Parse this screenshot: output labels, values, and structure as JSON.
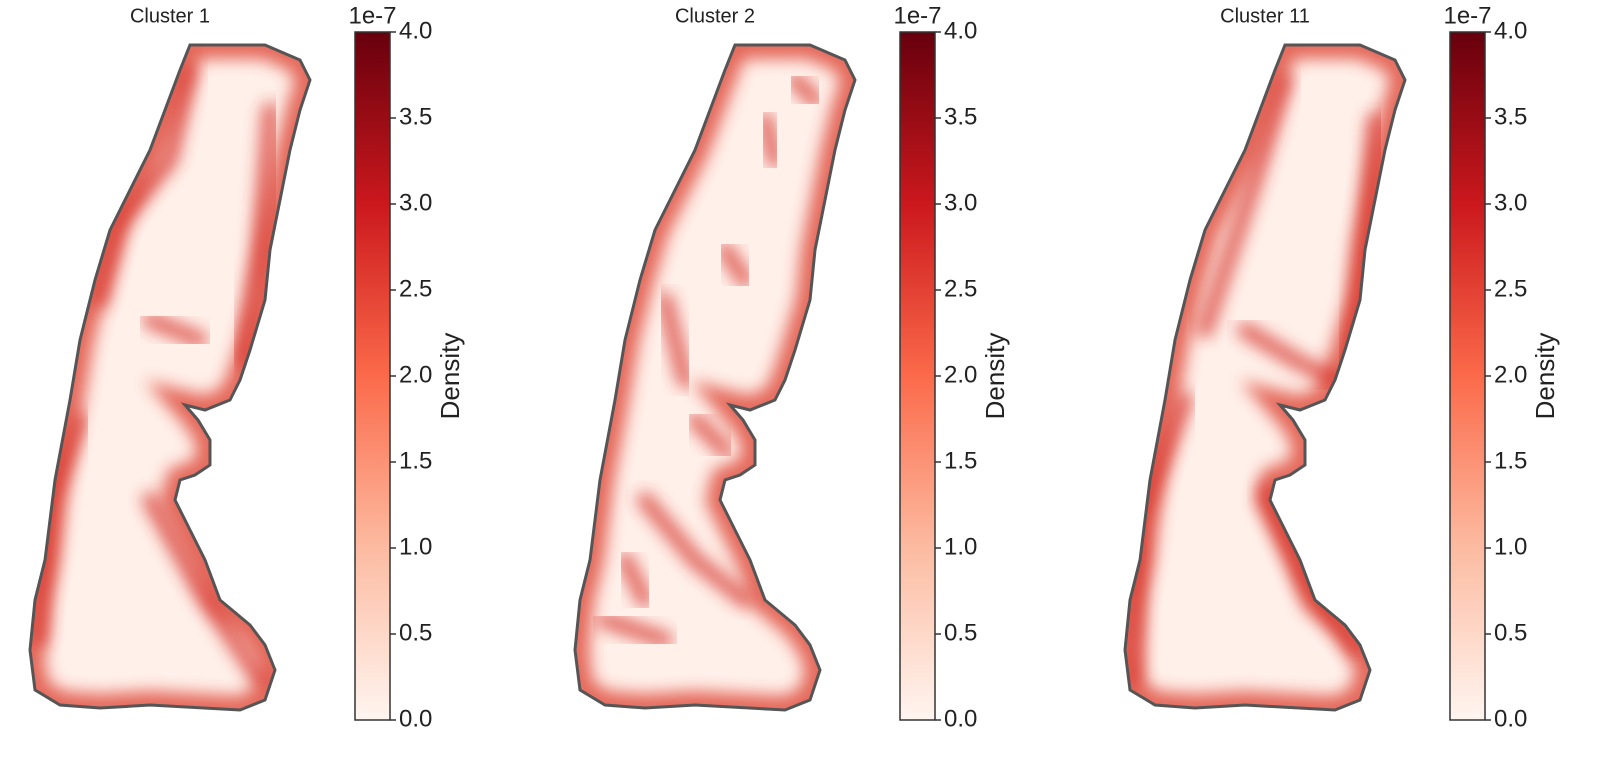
{
  "chart_data": [
    {
      "type": "heatmap",
      "title": "Cluster 1",
      "colormap": "Reds",
      "colorbar": {
        "label": "Density",
        "offset_text": "1e-7",
        "lim": [
          0,
          4
        ],
        "ticks": [
          {
            "value": 0,
            "label": "0.0"
          },
          {
            "value": 0.5,
            "label": "0.5"
          },
          {
            "value": 1,
            "label": "1.0"
          },
          {
            "value": 1.5,
            "label": "1.5"
          },
          {
            "value": 2,
            "label": "2.0"
          },
          {
            "value": 2.5,
            "label": "2.5"
          },
          {
            "value": 3,
            "label": "3.0"
          },
          {
            "value": 3.5,
            "label": "3.5"
          },
          {
            "value": 4,
            "label": "4.0"
          }
        ]
      }
    },
    {
      "type": "heatmap",
      "title": "Cluster 2",
      "colormap": "Reds",
      "colorbar": {
        "label": "Density",
        "offset_text": "1e-7",
        "lim": [
          0,
          4
        ],
        "ticks": [
          {
            "value": 0,
            "label": "0.0"
          },
          {
            "value": 0.5,
            "label": "0.5"
          },
          {
            "value": 1,
            "label": "1.0"
          },
          {
            "value": 1.5,
            "label": "1.5"
          },
          {
            "value": 2,
            "label": "2.0"
          },
          {
            "value": 2.5,
            "label": "2.5"
          },
          {
            "value": 3,
            "label": "3.0"
          },
          {
            "value": 3.5,
            "label": "3.5"
          },
          {
            "value": 4,
            "label": "4.0"
          }
        ]
      }
    },
    {
      "type": "heatmap",
      "title": "Cluster 11",
      "colormap": "Reds",
      "colorbar": {
        "label": "Density",
        "offset_text": "1e-7",
        "lim": [
          0,
          4
        ],
        "ticks": [
          {
            "value": 0,
            "label": "0.0"
          },
          {
            "value": 0.5,
            "label": "0.5"
          },
          {
            "value": 1,
            "label": "1.0"
          },
          {
            "value": 1.5,
            "label": "1.5"
          },
          {
            "value": 2,
            "label": "2.0"
          },
          {
            "value": 2.5,
            "label": "2.5"
          },
          {
            "value": 3,
            "label": "3.0"
          },
          {
            "value": 3.5,
            "label": "3.5"
          },
          {
            "value": 4,
            "label": "4.0"
          }
        ]
      }
    }
  ]
}
